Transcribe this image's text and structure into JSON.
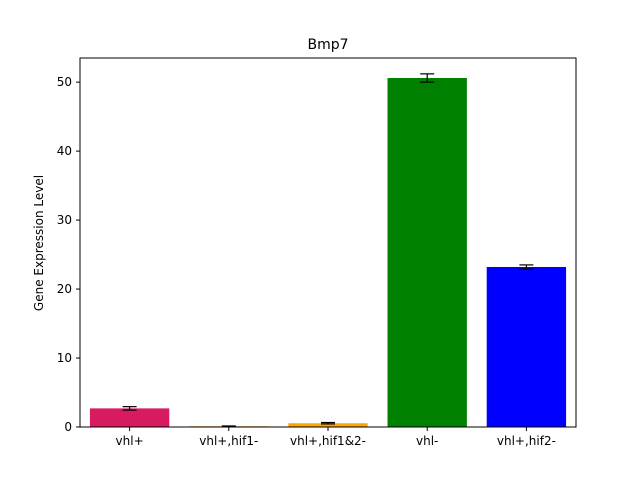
{
  "chart_data": {
    "type": "bar",
    "title": "Bmp7",
    "xlabel": "",
    "ylabel": "Gene Expression Level",
    "categories": [
      "vhl+",
      "vhl+,hif1-",
      "vhl+,hif1&2-",
      "vhl-",
      "vhl+,hif2-"
    ],
    "values": [
      2.7,
      0.1,
      0.55,
      50.6,
      23.2
    ],
    "errors": [
      0.25,
      0.05,
      0.1,
      0.6,
      0.3
    ],
    "colors": [
      "#d81b60",
      "#ff8c00",
      "#ffa500",
      "#008000",
      "#0000ff"
    ],
    "ylim": [
      0,
      53.5
    ],
    "yticks": [
      0,
      10,
      20,
      30,
      40,
      50
    ],
    "grid": false,
    "legend": "none"
  }
}
